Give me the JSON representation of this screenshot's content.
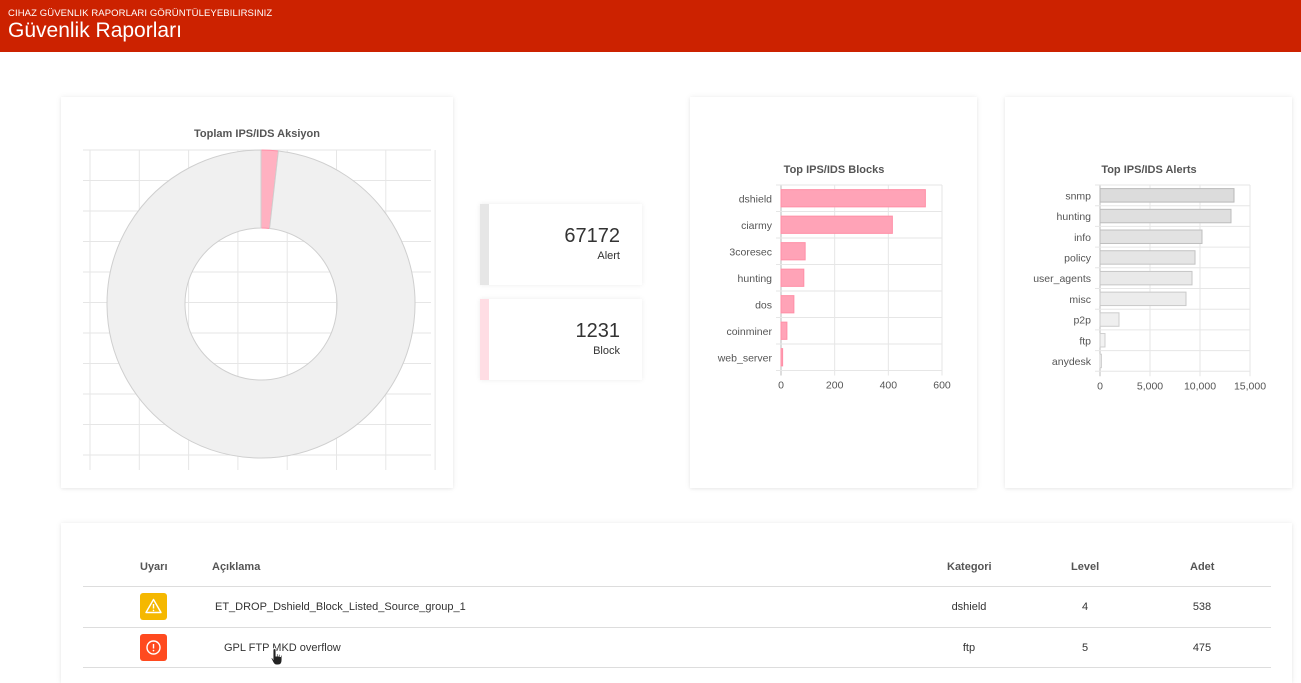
{
  "header": {
    "subtitle": "CIHAZ GÜVENLIK RAPORLARI GÖRÜNTÜLEYEBILIRSINIZ",
    "title": "Güvenlik Raporları"
  },
  "colors": {
    "header": "#cc2200",
    "alert_gray": "#e6e6e6",
    "block_pink": "#ffa0b4",
    "warning_yellow": "#f5b800",
    "danger_orange": "#ff4a1f"
  },
  "stats": {
    "alert": {
      "value": "67172",
      "label": "Alert"
    },
    "block": {
      "value": "1231",
      "label": "Block"
    }
  },
  "chart_data": [
    {
      "type": "pie",
      "title": "Toplam IPS/IDS Aksiyon",
      "categories": [
        "Alert",
        "Block"
      ],
      "values": [
        67172,
        1231
      ],
      "grid": true
    },
    {
      "type": "bar",
      "title": "Top IPS/IDS Blocks",
      "orientation": "horizontal",
      "categories": [
        "dshield",
        "ciarmy",
        "3coresec",
        "hunting",
        "dos",
        "coinminer",
        "web_server"
      ],
      "values": [
        538,
        415,
        90,
        85,
        48,
        22,
        6
      ],
      "xlim": [
        0,
        600
      ],
      "xticks": [
        "0",
        "200",
        "400",
        "600"
      ],
      "grid": true
    },
    {
      "type": "bar",
      "title": "Top IPS/IDS Alerts",
      "orientation": "horizontal",
      "categories": [
        "snmp",
        "hunting",
        "info",
        "policy",
        "user_agents",
        "misc",
        "p2p",
        "ftp",
        "anydesk"
      ],
      "values": [
        13400,
        13100,
        10200,
        9500,
        9200,
        8600,
        1900,
        500,
        150
      ],
      "xlim": [
        0,
        15000
      ],
      "xticks": [
        "0",
        "5,000",
        "10,000",
        "15,000"
      ],
      "grid": true
    }
  ],
  "table": {
    "headers": {
      "uyari": "Uyarı",
      "aciklama": "Açıklama",
      "kategori": "Kategori",
      "level": "Level",
      "adet": "Adet"
    },
    "rows": [
      {
        "icon": "warning-triangle-icon",
        "aciklama": "ET_DROP_Dshield_Block_Listed_Source_group_1",
        "kategori": "dshield",
        "level": "4",
        "adet": "538"
      },
      {
        "icon": "exclamation-circle-icon",
        "aciklama": "GPL FTP MKD overflow",
        "kategori": "ftp",
        "level": "5",
        "adet": "475"
      }
    ]
  }
}
